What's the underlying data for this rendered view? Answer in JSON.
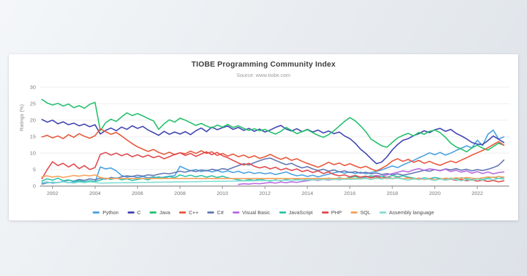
{
  "page": {
    "background_top": "#f4f7f9",
    "background_bottom": "#dde2e8",
    "card_background": "#ffffff"
  },
  "chart_data": {
    "type": "line",
    "title": "TIOBE Programming Community Index",
    "subtitle": "Source: www.tiobe.com",
    "xlabel": "",
    "ylabel": "Ratings (%)",
    "ylim": [
      0,
      30
    ],
    "xlim": [
      2001.4,
      2023.5
    ],
    "y_ticks": [
      0,
      5,
      10,
      15,
      20,
      25,
      30
    ],
    "x_ticks": [
      2002,
      2004,
      2006,
      2008,
      2010,
      2012,
      2014,
      2016,
      2018,
      2020,
      2022
    ],
    "grid": true,
    "legend_position": "bottom",
    "axis_color": "#8a8a8a",
    "grid_color": "#ececec",
    "x_start": 2001.5,
    "x_step": 0.25,
    "series": [
      {
        "name": "Python",
        "color": "#4ba3e2",
        "values": [
          1.0,
          1.2,
          0.9,
          1.1,
          1.3,
          1.0,
          1.2,
          1.4,
          1.1,
          1.3,
          1.2,
          5.8,
          5.2,
          5.5,
          4.6,
          3.2,
          2.7,
          3.0,
          2.6,
          2.9,
          2.5,
          2.8,
          2.4,
          2.7,
          3.0,
          3.1,
          6.0,
          5.3,
          4.6,
          5.0,
          4.4,
          4.8,
          4.3,
          4.7,
          4.2,
          4.6,
          4.1,
          4.5,
          3.9,
          4.3,
          3.8,
          4.1,
          3.7,
          4.0,
          3.5,
          3.9,
          4.3,
          3.6,
          3.1,
          3.4,
          2.9,
          3.3,
          2.8,
          3.2,
          3.6,
          4.0,
          4.4,
          3.9,
          4.3,
          3.8,
          4.2,
          3.7,
          4.1,
          4.5,
          4.9,
          5.5,
          6.1,
          5.6,
          6.4,
          7.1,
          7.8,
          8.6,
          9.3,
          10.1,
          9.5,
          10.2,
          9.4,
          10.0,
          10.8,
          11.5,
          12.2,
          11.6,
          13.9,
          12.3,
          15.7,
          17.0,
          14.3,
          14.9
        ]
      },
      {
        "name": "C",
        "color": "#4347b2",
        "values": [
          20.2,
          19.4,
          20.0,
          18.9,
          19.5,
          18.6,
          19.1,
          18.3,
          18.8,
          18.0,
          18.6,
          15.8,
          16.9,
          17.6,
          16.8,
          17.9,
          17.2,
          18.3,
          17.5,
          18.1,
          17.0,
          16.2,
          15.4,
          16.6,
          15.7,
          16.4,
          15.8,
          16.5,
          15.6,
          16.8,
          17.6,
          16.5,
          17.9,
          17.1,
          17.7,
          18.2,
          17.2,
          17.8,
          16.9,
          17.5,
          16.6,
          17.3,
          16.4,
          17.0,
          17.8,
          18.4,
          17.3,
          16.7,
          17.4,
          16.5,
          17.2,
          16.4,
          17.0,
          16.1,
          16.7,
          15.9,
          16.4,
          15.2,
          14.4,
          13.0,
          11.2,
          9.9,
          8.3,
          6.8,
          7.3,
          8.9,
          11.0,
          12.6,
          13.9,
          14.4,
          15.3,
          15.9,
          16.8,
          16.2,
          17.1,
          17.5,
          16.6,
          17.2,
          16.0,
          15.2,
          14.3,
          13.2,
          12.7,
          12.6,
          13.8,
          15.2,
          14.2,
          13.2
        ]
      },
      {
        "name": "Java",
        "color": "#25c16d",
        "values": [
          26.3,
          25.2,
          24.6,
          25.1,
          24.3,
          24.9,
          23.8,
          24.4,
          23.6,
          24.8,
          25.4,
          16.8,
          19.2,
          20.3,
          19.6,
          21.0,
          22.2,
          21.4,
          22.0,
          21.3,
          20.5,
          19.8,
          17.2,
          18.9,
          20.1,
          19.4,
          20.6,
          20.0,
          19.2,
          18.4,
          19.0,
          18.2,
          17.6,
          18.5,
          17.9,
          18.7,
          17.8,
          18.3,
          17.5,
          16.9,
          17.4,
          16.8,
          17.2,
          16.4,
          15.8,
          16.6,
          17.8,
          16.9,
          15.9,
          16.5,
          17.1,
          16.2,
          15.4,
          14.8,
          15.6,
          16.8,
          18.2,
          19.6,
          20.8,
          19.8,
          18.3,
          16.5,
          14.2,
          13.2,
          12.2,
          11.8,
          13.3,
          14.6,
          15.4,
          16.0,
          15.2,
          16.3,
          15.7,
          16.6,
          17.0,
          16.2,
          14.8,
          13.0,
          11.9,
          11.2,
          10.4,
          11.6,
          12.4,
          11.5,
          10.9,
          12.0,
          13.0,
          12.4
        ]
      },
      {
        "name": "C++",
        "color": "#e8593c",
        "values": [
          14.9,
          15.4,
          14.6,
          15.2,
          14.4,
          15.6,
          14.8,
          15.9,
          15.1,
          14.5,
          15.3,
          17.4,
          16.5,
          15.7,
          16.3,
          15.2,
          14.0,
          12.9,
          11.9,
          11.2,
          10.5,
          11.1,
          10.2,
          9.6,
          10.3,
          9.5,
          10.1,
          9.8,
          10.6,
          9.9,
          10.7,
          9.9,
          10.4,
          9.3,
          9.9,
          9.1,
          9.7,
          8.9,
          9.4,
          8.6,
          9.2,
          8.4,
          8.9,
          9.6,
          8.8,
          8.1,
          8.7,
          7.8,
          8.3,
          7.5,
          6.9,
          6.3,
          5.7,
          6.4,
          7.2,
          6.5,
          7.0,
          6.2,
          6.8,
          6.1,
          5.5,
          6.0,
          5.2,
          4.6,
          5.4,
          6.3,
          7.6,
          8.3,
          7.5,
          8.1,
          7.2,
          7.8,
          6.9,
          7.5,
          6.8,
          6.3,
          7.0,
          7.6,
          7.1,
          7.9,
          8.6,
          9.4,
          10.1,
          10.8,
          11.6,
          12.6,
          13.5,
          12.4
        ]
      },
      {
        "name": "C#",
        "color": "#6478b4",
        "values": [
          0.6,
          0.9,
          1.2,
          1.0,
          1.4,
          1.8,
          1.5,
          2.0,
          1.7,
          2.2,
          1.9,
          2.4,
          2.1,
          2.6,
          2.3,
          2.8,
          3.1,
          2.9,
          3.3,
          3.0,
          3.4,
          3.2,
          3.6,
          3.9,
          3.7,
          4.1,
          4.5,
          4.2,
          4.7,
          4.4,
          4.9,
          4.6,
          5.1,
          4.8,
          5.3,
          5.0,
          5.6,
          6.2,
          6.8,
          6.4,
          7.1,
          7.7,
          8.2,
          8.5,
          7.8,
          7.1,
          6.5,
          6.9,
          6.1,
          5.5,
          5.9,
          5.2,
          4.7,
          5.1,
          4.5,
          4.9,
          4.3,
          4.6,
          4.1,
          4.4,
          3.9,
          4.2,
          3.7,
          4.0,
          3.5,
          3.8,
          3.4,
          3.7,
          3.3,
          3.6,
          4.0,
          4.4,
          4.8,
          4.5,
          5.0,
          4.7,
          5.2,
          4.9,
          5.3,
          4.8,
          5.1,
          4.6,
          5.0,
          4.7,
          5.1,
          5.6,
          6.3,
          7.9
        ]
      },
      {
        "name": "Visual Basic",
        "color": "#bb6ce2",
        "values": [
          null,
          null,
          null,
          null,
          null,
          null,
          null,
          null,
          null,
          null,
          null,
          null,
          null,
          null,
          null,
          null,
          null,
          null,
          null,
          null,
          null,
          null,
          null,
          null,
          null,
          null,
          null,
          null,
          null,
          null,
          null,
          null,
          null,
          null,
          null,
          null,
          null,
          0.5,
          0.7,
          0.6,
          0.8,
          0.7,
          0.9,
          1.1,
          0.9,
          1.2,
          1.0,
          1.3,
          1.1,
          1.4,
          1.6,
          1.9,
          1.7,
          2.0,
          1.8,
          2.1,
          1.9,
          2.2,
          2.4,
          2.2,
          2.5,
          2.7,
          2.9,
          3.2,
          3.0,
          3.4,
          3.8,
          4.2,
          4.6,
          4.3,
          4.9,
          5.3,
          4.8,
          5.2,
          5.0,
          4.6,
          5.1,
          4.4,
          4.8,
          4.2,
          4.6,
          3.9,
          4.4,
          3.8,
          4.3,
          3.7,
          4.1,
          4.3
        ]
      },
      {
        "name": "JavaScript",
        "color": "#2fc4ad",
        "values": [
          1.5,
          2.2,
          1.8,
          2.4,
          1.6,
          1.9,
          1.4,
          1.7,
          1.3,
          1.6,
          1.4,
          1.8,
          2.4,
          2.0,
          2.5,
          1.9,
          2.2,
          1.7,
          2.0,
          2.3,
          1.9,
          2.5,
          2.8,
          2.4,
          2.9,
          2.5,
          3.4,
          2.9,
          3.3,
          2.8,
          3.2,
          2.7,
          3.1,
          2.6,
          3.0,
          2.5,
          2.2,
          1.9,
          1.6,
          2.0,
          1.7,
          2.1,
          1.8,
          1.5,
          1.9,
          1.6,
          2.0,
          1.7,
          2.1,
          1.8,
          2.2,
          1.9,
          2.3,
          2.0,
          2.4,
          2.1,
          2.5,
          2.2,
          2.6,
          2.9,
          2.5,
          2.8,
          3.1,
          2.7,
          3.0,
          2.6,
          3.2,
          2.8,
          3.1,
          2.7,
          2.4,
          2.1,
          2.5,
          2.2,
          2.6,
          2.3,
          2.0,
          2.4,
          2.1,
          2.5,
          2.2,
          1.9,
          2.3,
          2.0,
          2.4,
          2.7,
          2.3,
          2.6
        ]
      },
      {
        "name": "PHP",
        "color": "#e14b50",
        "values": [
          2.2,
          5.0,
          7.4,
          6.2,
          6.9,
          5.8,
          6.7,
          5.3,
          6.2,
          5.0,
          5.6,
          9.6,
          10.2,
          9.4,
          10.0,
          9.2,
          9.8,
          8.9,
          9.5,
          8.8,
          9.4,
          8.6,
          9.1,
          8.3,
          8.9,
          9.6,
          10.1,
          9.3,
          9.9,
          9.0,
          9.7,
          10.4,
          9.5,
          10.2,
          9.2,
          8.6,
          7.8,
          7.0,
          6.4,
          6.9,
          6.0,
          5.5,
          5.9,
          5.2,
          5.7,
          4.9,
          5.4,
          4.7,
          5.2,
          4.4,
          4.8,
          4.1,
          4.6,
          3.8,
          4.3,
          3.5,
          3.1,
          3.4,
          2.8,
          3.2,
          2.7,
          3.0,
          2.5,
          2.9,
          2.4,
          2.7,
          2.3,
          2.6,
          2.2,
          2.5,
          2.1,
          2.4,
          2.0,
          2.3,
          1.9,
          2.2,
          1.8,
          2.1,
          1.7,
          2.0,
          1.6,
          1.9,
          1.5,
          1.8,
          1.4,
          1.7,
          1.3,
          1.6
        ]
      },
      {
        "name": "SQL",
        "color": "#f7a45e",
        "values": [
          2.8,
          3.1,
          2.7,
          3.0,
          2.6,
          2.9,
          3.2,
          3.0,
          3.3,
          3.1,
          3.4,
          2.6,
          2.3,
          2.3,
          2.3,
          2.3,
          2.3,
          2.3,
          2.3,
          2.3,
          2.3,
          2.3,
          2.3,
          2.3,
          2.3,
          2.3,
          2.3,
          2.3,
          2.3,
          2.3,
          2.3,
          2.3,
          2.3,
          2.3,
          2.3,
          2.3,
          2.3,
          2.3,
          2.3,
          2.3,
          2.3,
          2.3,
          2.3,
          2.3,
          2.3,
          2.3,
          2.3,
          2.3,
          2.3,
          2.3,
          2.3,
          2.3,
          2.3,
          2.3,
          2.3,
          2.3,
          2.3,
          2.3,
          2.3,
          2.3,
          2.3,
          2.3,
          2.3,
          2.3,
          2.3,
          2.3,
          2.3,
          2.5,
          2.2,
          2.4,
          2.1,
          2.3,
          2.0,
          2.2,
          1.9,
          2.1,
          2.4,
          2.2,
          2.5,
          2.3,
          2.6,
          2.4,
          2.2,
          2.5,
          2.8,
          2.6,
          2.9,
          2.7
        ]
      },
      {
        "name": "Assembly language",
        "color": "#85ded2",
        "values": [
          1.1,
          0.9,
          1.2,
          1.0,
          1.3,
          1.1,
          0.9,
          1.2,
          1.0,
          1.3,
          1.1,
          0.9,
          0.92,
          0.95,
          0.97,
          1.0,
          1.02,
          1.05,
          1.07,
          1.1,
          1.12,
          1.15,
          1.17,
          1.19,
          1.22,
          1.24,
          1.27,
          1.29,
          1.32,
          1.34,
          1.37,
          1.39,
          1.41,
          1.44,
          1.46,
          1.49,
          1.51,
          1.54,
          1.56,
          1.59,
          1.61,
          1.64,
          1.66,
          1.68,
          1.71,
          1.73,
          1.76,
          1.78,
          1.81,
          1.83,
          1.86,
          1.88,
          1.9,
          1.93,
          1.95,
          1.98,
          2.0,
          2.03,
          2.05,
          2.08,
          2.1,
          2.3,
          2.0,
          2.4,
          2.1,
          2.5,
          2.2,
          2.4,
          2.1,
          1.8,
          2.2,
          1.9,
          2.3,
          2.0,
          1.7,
          2.1,
          1.8,
          2.2,
          1.9,
          1.6,
          2.0,
          1.7,
          2.1,
          1.8,
          2.2,
          1.9,
          2.3,
          2.1
        ]
      }
    ]
  }
}
